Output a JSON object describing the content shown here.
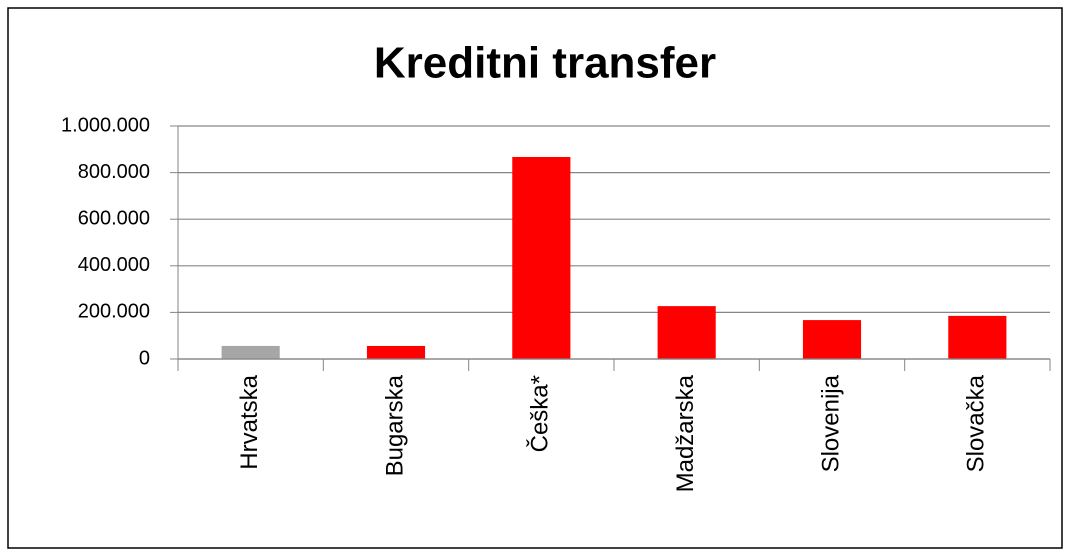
{
  "chart_data": {
    "type": "bar",
    "title": "Kreditni transfer",
    "categories": [
      "Hrvatska",
      "Bugarska",
      "Češka*",
      "Madžarska",
      "Slovenija",
      "Slovačka"
    ],
    "values": [
      56000,
      56000,
      867000,
      227000,
      167000,
      185000
    ],
    "colors": [
      "#a6a6a6",
      "#ff0000",
      "#ff0000",
      "#ff0000",
      "#ff0000",
      "#ff0000"
    ],
    "ylim": [
      0,
      1000000
    ],
    "yticks": [
      0,
      {
        "value": 200000,
        "label": "200.000"
      },
      {
        "value": 400000,
        "label": "400.000"
      },
      {
        "value": 600000,
        "label": "600.000"
      },
      {
        "value": 800000,
        "label": "800.000"
      },
      {
        "value": 1000000,
        "label": "1.000.000"
      }
    ],
    "grid": true
  }
}
